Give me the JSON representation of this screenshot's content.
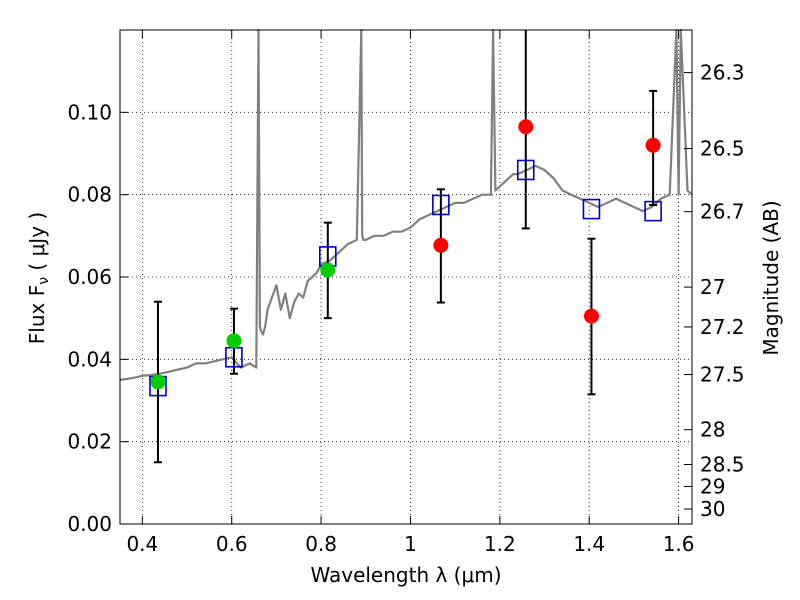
{
  "chart_data": {
    "type": "scatter",
    "xlabel": "Wavelength  λ (μm)",
    "ylabel": "Flux  F",
    "ylabel_sub": "ν",
    "ylabel_unit": " ( μJy )",
    "y2label": "Magnitude (AB)",
    "xlim": [
      0.35,
      1.63
    ],
    "ylim": [
      0.0,
      0.12
    ],
    "grid": true,
    "x_ticks": [
      {
        "value": 0.4,
        "label": "0.4"
      },
      {
        "value": 0.6,
        "label": "0.6"
      },
      {
        "value": 0.8,
        "label": "0.8"
      },
      {
        "value": 1.0,
        "label": "1"
      },
      {
        "value": 1.2,
        "label": "1.2"
      },
      {
        "value": 1.4,
        "label": "1.4"
      },
      {
        "value": 1.6,
        "label": "1.6"
      }
    ],
    "y_ticks": [
      {
        "value": 0.0,
        "label": "0.00"
      },
      {
        "value": 0.02,
        "label": "0.02"
      },
      {
        "value": 0.04,
        "label": "0.04"
      },
      {
        "value": 0.06,
        "label": "0.06"
      },
      {
        "value": 0.08,
        "label": "0.08"
      },
      {
        "value": 0.1,
        "label": "0.10"
      }
    ],
    "y2_ticks": [
      {
        "mag": 26.3,
        "label": "26.3"
      },
      {
        "mag": 26.5,
        "label": "26.5"
      },
      {
        "mag": 26.7,
        "label": "26.7"
      },
      {
        "mag": 27.0,
        "label": "27"
      },
      {
        "mag": 27.2,
        "label": "27.2"
      },
      {
        "mag": 27.5,
        "label": "27.5"
      },
      {
        "mag": 28.0,
        "label": "28"
      },
      {
        "mag": 28.5,
        "label": "28.5"
      },
      {
        "mag": 29.0,
        "label": "29"
      },
      {
        "mag": 30.0,
        "label": "30"
      }
    ],
    "series": [
      {
        "kind": "line",
        "color": "#808080",
        "x": [
          0.35,
          0.38,
          0.4,
          0.42,
          0.44,
          0.46,
          0.48,
          0.5,
          0.52,
          0.54,
          0.56,
          0.58,
          0.6,
          0.62,
          0.64,
          0.655,
          0.66,
          0.663,
          0.665,
          0.67,
          0.675,
          0.68,
          0.69,
          0.7,
          0.71,
          0.72,
          0.73,
          0.74,
          0.75,
          0.76,
          0.77,
          0.78,
          0.79,
          0.8,
          0.82,
          0.84,
          0.86,
          0.88,
          0.89,
          0.892,
          0.895,
          0.9,
          0.92,
          0.94,
          0.96,
          0.98,
          1.0,
          1.02,
          1.04,
          1.06,
          1.08,
          1.1,
          1.12,
          1.14,
          1.16,
          1.18,
          1.185,
          1.19,
          1.2,
          1.21,
          1.22,
          1.23,
          1.24,
          1.26,
          1.28,
          1.3,
          1.32,
          1.34,
          1.36,
          1.38,
          1.4,
          1.42,
          1.44,
          1.46,
          1.48,
          1.5,
          1.52,
          1.54,
          1.56,
          1.58,
          1.595,
          1.6,
          1.605,
          1.62,
          1.63
        ],
        "y": [
          0.035,
          0.0355,
          0.036,
          0.0362,
          0.0365,
          0.037,
          0.0375,
          0.038,
          0.039,
          0.039,
          0.0395,
          0.04,
          0.0405,
          0.038,
          0.039,
          0.038,
          0.12,
          0.048,
          0.047,
          0.046,
          0.048,
          0.052,
          0.055,
          0.058,
          0.052,
          0.056,
          0.05,
          0.054,
          0.056,
          0.055,
          0.059,
          0.06,
          0.061,
          0.063,
          0.064,
          0.066,
          0.068,
          0.069,
          0.12,
          0.07,
          0.069,
          0.069,
          0.07,
          0.07,
          0.071,
          0.071,
          0.072,
          0.074,
          0.075,
          0.076,
          0.077,
          0.078,
          0.078,
          0.079,
          0.08,
          0.08,
          0.12,
          0.081,
          0.082,
          0.083,
          0.084,
          0.085,
          0.085,
          0.086,
          0.087,
          0.086,
          0.084,
          0.081,
          0.08,
          0.079,
          0.078,
          0.077,
          0.078,
          0.079,
          0.078,
          0.077,
          0.076,
          0.077,
          0.079,
          0.08,
          0.12,
          0.08,
          0.12,
          0.081,
          0.08
        ]
      },
      {
        "kind": "open-square",
        "color": "#0000cc",
        "x": [
          0.435,
          0.605,
          0.815,
          1.068,
          1.258,
          1.405,
          1.543
        ],
        "y": [
          0.0335,
          0.0405,
          0.065,
          0.0775,
          0.086,
          0.0765,
          0.076
        ]
      },
      {
        "kind": "filled-circle",
        "color": "#00cc00",
        "x": [
          0.435,
          0.605,
          0.815
        ],
        "y": [
          0.0345,
          0.0445,
          0.0617
        ]
      },
      {
        "kind": "filled-circle",
        "color": "#ff0000",
        "x": [
          1.068,
          1.258,
          1.405,
          1.543
        ],
        "y": [
          0.0677,
          0.0965,
          0.0505,
          0.092
        ]
      }
    ],
    "error_bars": [
      {
        "x": 0.435,
        "low": 0.015,
        "high": 0.054
      },
      {
        "x": 0.605,
        "low": 0.0365,
        "high": 0.0523
      },
      {
        "x": 0.815,
        "low": 0.05,
        "high": 0.0732
      },
      {
        "x": 1.068,
        "low": 0.0538,
        "high": 0.0813
      },
      {
        "x": 1.258,
        "low": 0.0718,
        "high": 0.122
      },
      {
        "x": 1.405,
        "low": 0.0315,
        "high": 0.0693
      },
      {
        "x": 1.543,
        "low": 0.0775,
        "high": 0.1052
      }
    ]
  }
}
